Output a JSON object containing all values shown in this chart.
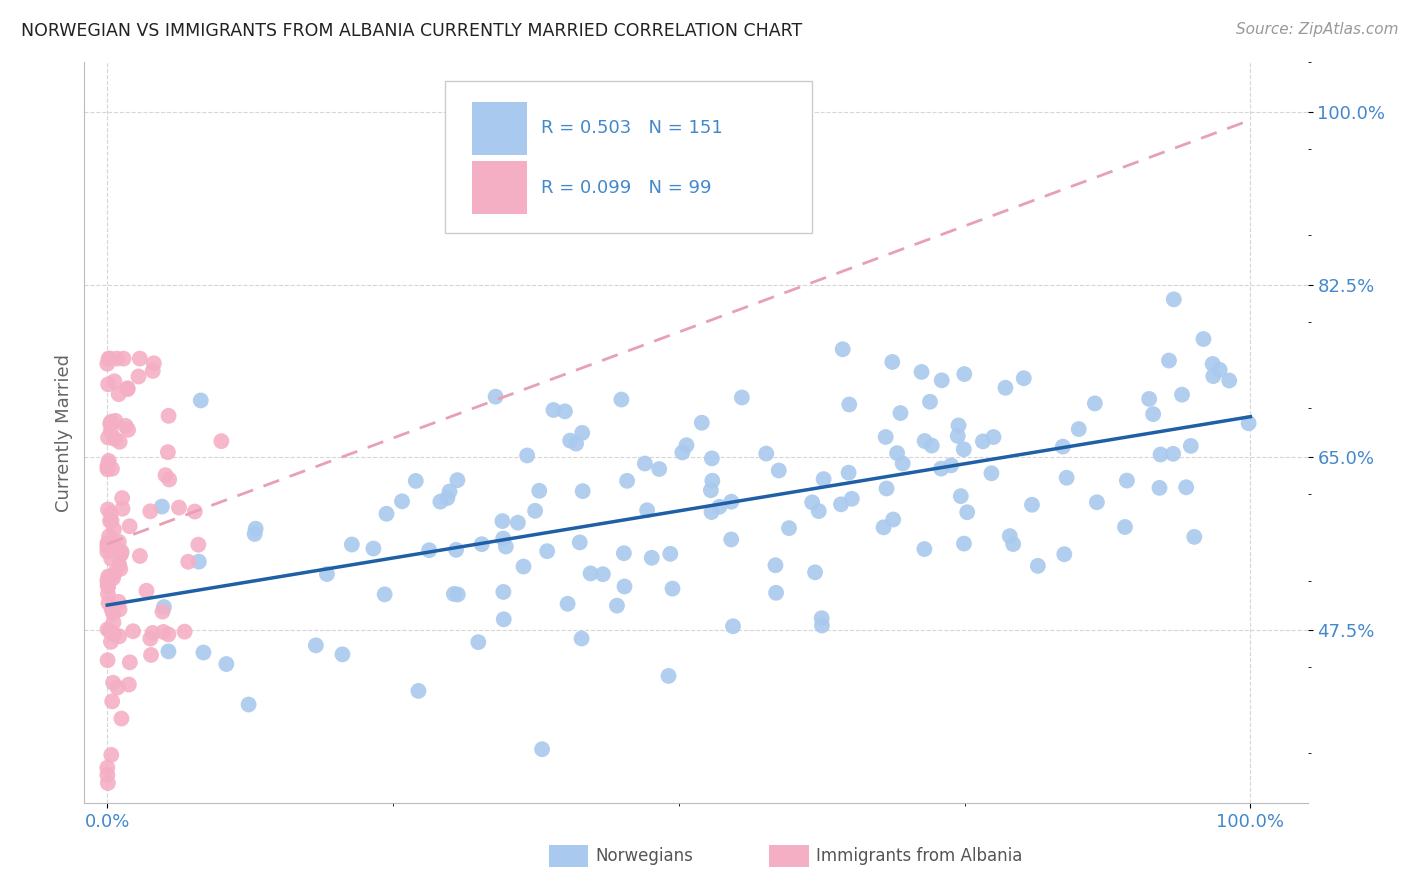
{
  "title": "NORWEGIAN VS IMMIGRANTS FROM ALBANIA CURRENTLY MARRIED CORRELATION CHART",
  "source": "Source: ZipAtlas.com",
  "ylabel": "Currently Married",
  "norwegian_R": 0.503,
  "norwegian_N": 151,
  "albanian_R": 0.099,
  "albanian_N": 99,
  "norwegian_color": "#aac9ee",
  "albanian_color": "#f4afc4",
  "norwegian_line_color": "#1f5fa6",
  "albanian_line_color": "#e8a0b4",
  "legend_label_norwegian": "Norwegians",
  "legend_label_albanian": "Immigrants from Albania",
  "title_color": "#222222",
  "axis_label_color": "#4488cc",
  "grid_color": "#cccccc",
  "background_color": "#ffffff",
  "y_min": 0.3,
  "y_max": 1.05,
  "x_min": -0.02,
  "x_max": 1.05
}
